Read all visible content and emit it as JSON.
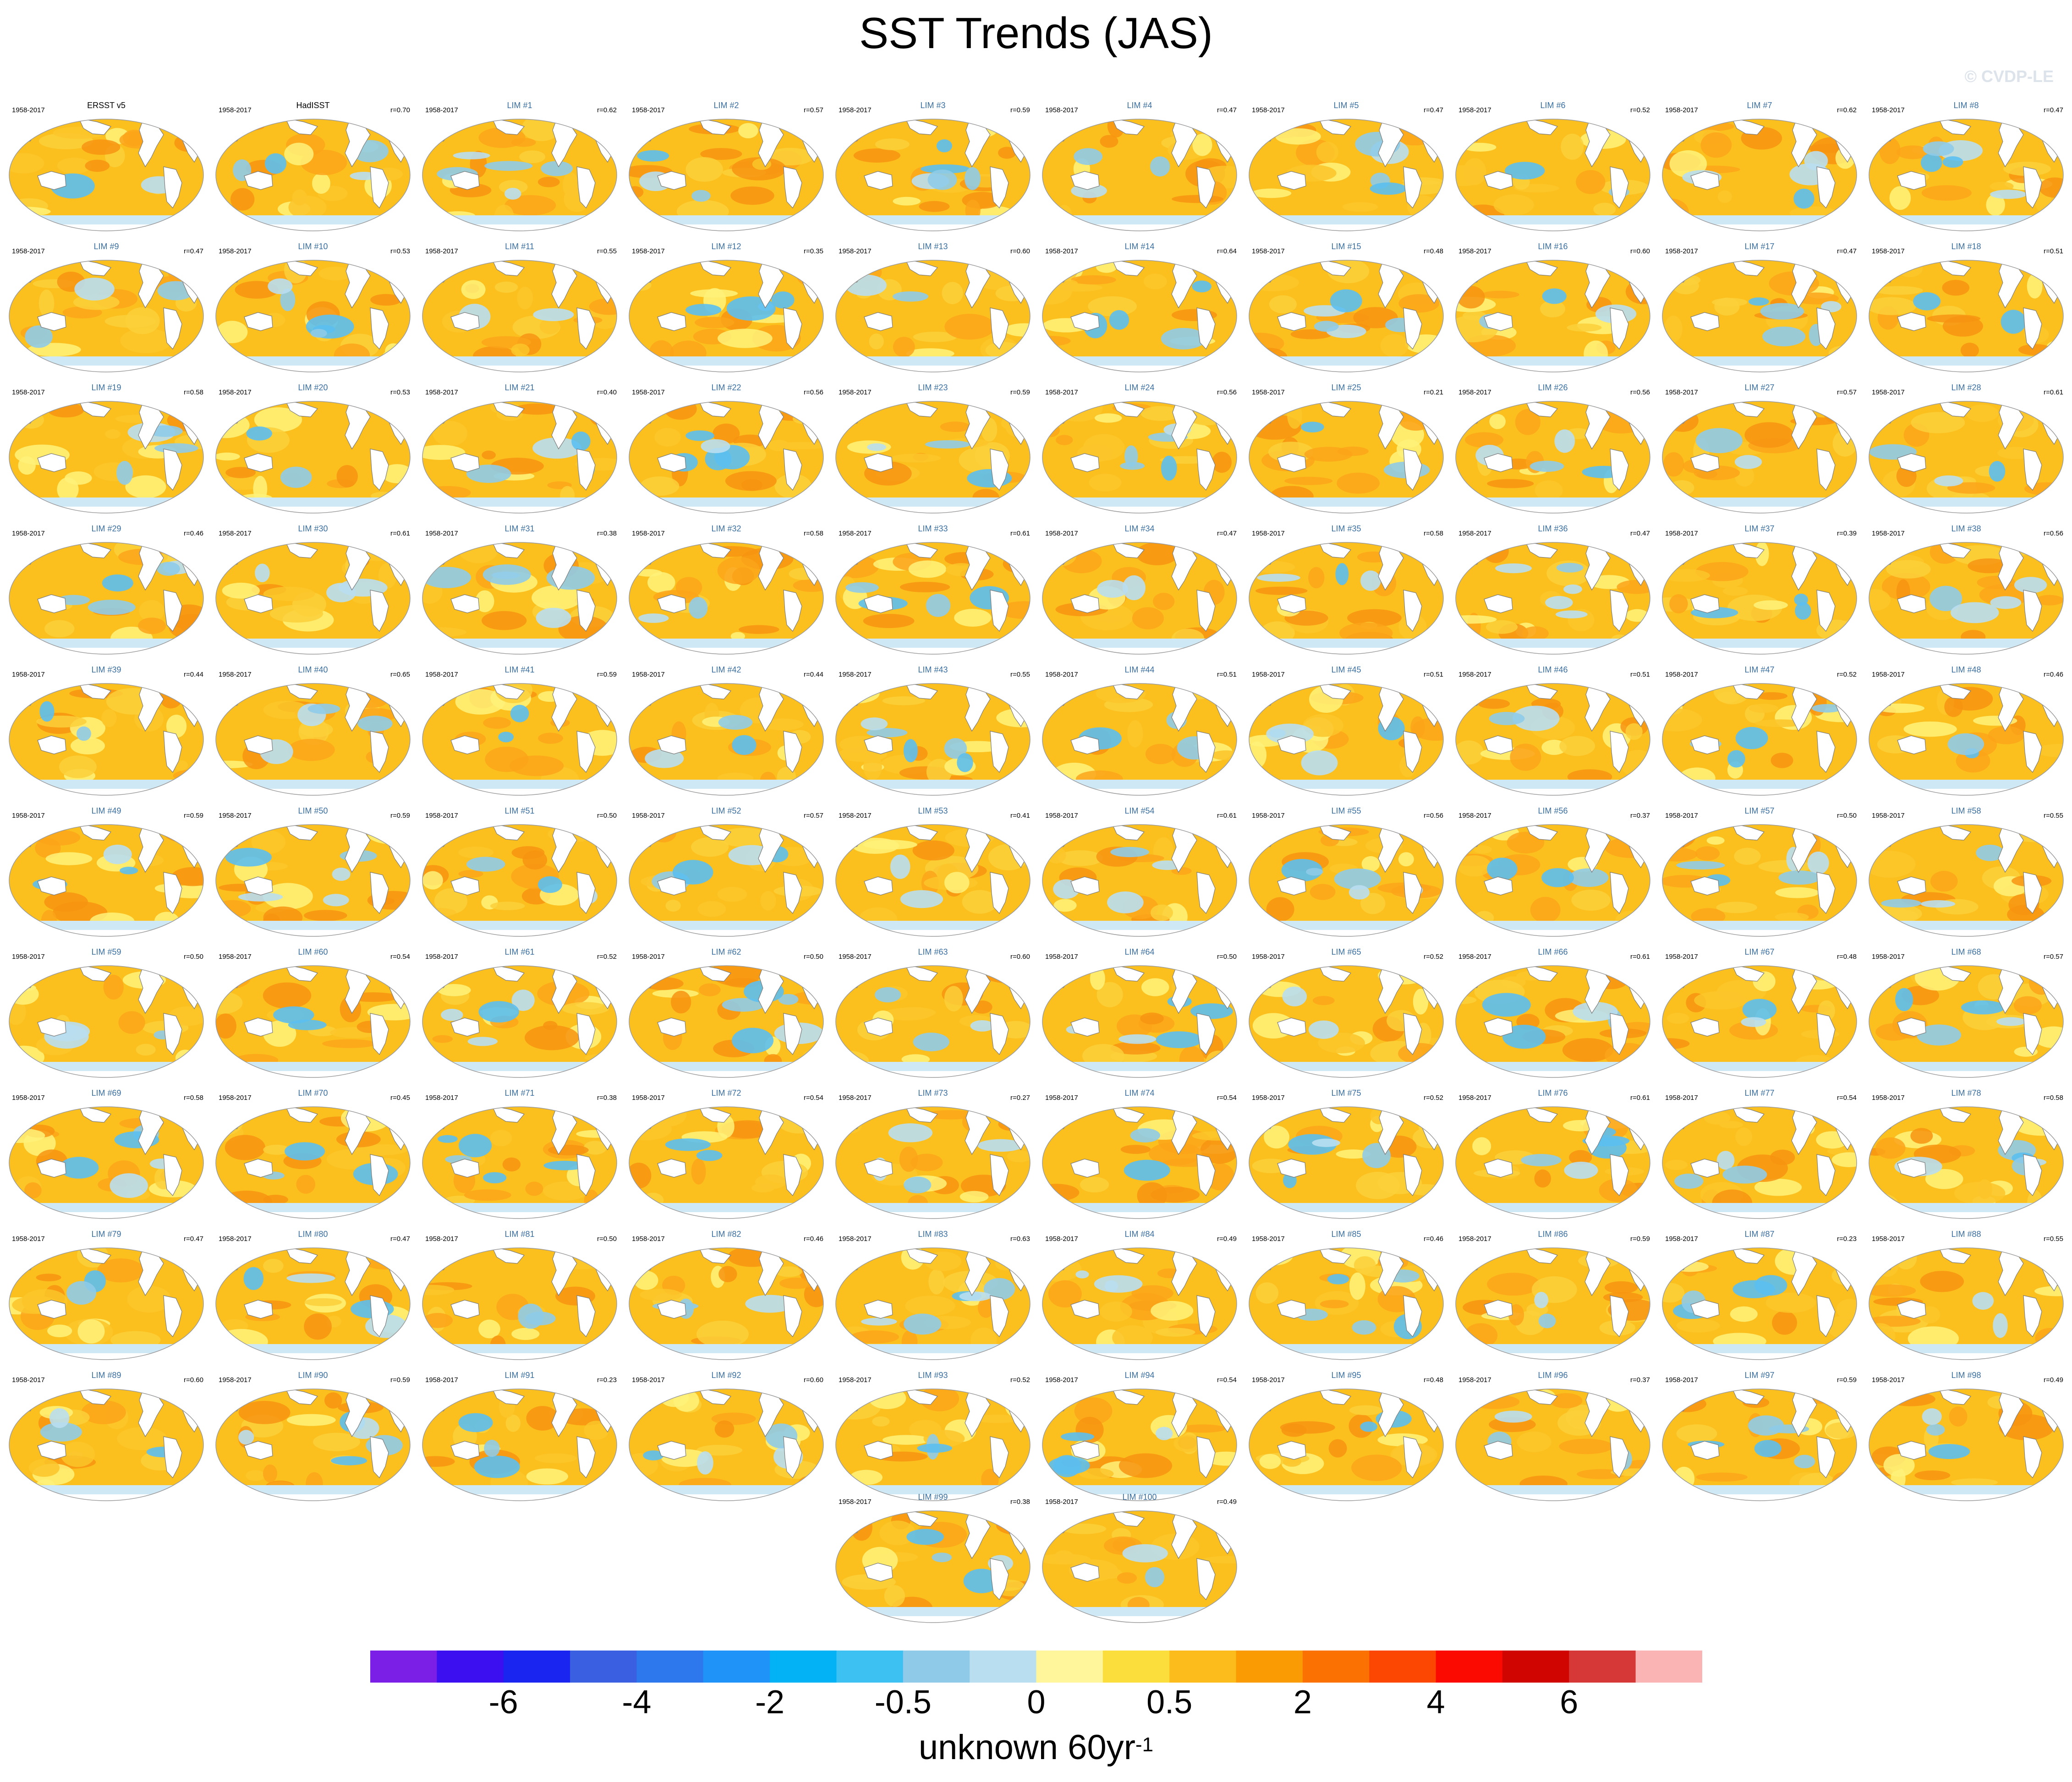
{
  "title": "SST Trends (JAS)",
  "watermark": "© CVDP-LE",
  "colors": {
    "panel_label": "#3a6fa0",
    "land": "#ffffff",
    "coast": "#7a7a7a"
  },
  "chart_data": {
    "type": "heatmap",
    "projection": "global-ellipse-map",
    "period": "1958-2017",
    "panels": [
      {
        "name": "ERSST v5",
        "corr": ""
      },
      {
        "name": "HadISST",
        "corr": "r=0.70"
      },
      {
        "name": "LIM #1",
        "corr": "r=0.62"
      },
      {
        "name": "LIM #2",
        "corr": "r=0.57"
      },
      {
        "name": "LIM #3",
        "corr": "r=0.59"
      },
      {
        "name": "LIM #4",
        "corr": "r=0.47"
      },
      {
        "name": "LIM #5",
        "corr": "r=0.47"
      },
      {
        "name": "LIM #6",
        "corr": "r=0.52"
      },
      {
        "name": "LIM #7",
        "corr": "r=0.62"
      },
      {
        "name": "LIM #8",
        "corr": "r=0.47"
      },
      {
        "name": "LIM #9",
        "corr": "r=0.47"
      },
      {
        "name": "LIM #10",
        "corr": "r=0.53"
      },
      {
        "name": "LIM #11",
        "corr": "r=0.55"
      },
      {
        "name": "LIM #12",
        "corr": "r=0.35"
      },
      {
        "name": "LIM #13",
        "corr": "r=0.60"
      },
      {
        "name": "LIM #14",
        "corr": "r=0.64"
      },
      {
        "name": "LIM #15",
        "corr": "r=0.48"
      },
      {
        "name": "LIM #16",
        "corr": "r=0.60"
      },
      {
        "name": "LIM #17",
        "corr": "r=0.47"
      },
      {
        "name": "LIM #18",
        "corr": "r=0.51"
      },
      {
        "name": "LIM #19",
        "corr": "r=0.58"
      },
      {
        "name": "LIM #20",
        "corr": "r=0.53"
      },
      {
        "name": "LIM #21",
        "corr": "r=0.40"
      },
      {
        "name": "LIM #22",
        "corr": "r=0.56"
      },
      {
        "name": "LIM #23",
        "corr": "r=0.59"
      },
      {
        "name": "LIM #24",
        "corr": "r=0.56"
      },
      {
        "name": "LIM #25",
        "corr": "r=0.21"
      },
      {
        "name": "LIM #26",
        "corr": "r=0.56"
      },
      {
        "name": "LIM #27",
        "corr": "r=0.57"
      },
      {
        "name": "LIM #28",
        "corr": "r=0.61"
      },
      {
        "name": "LIM #29",
        "corr": "r=0.46"
      },
      {
        "name": "LIM #30",
        "corr": "r=0.61"
      },
      {
        "name": "LIM #31",
        "corr": "r=0.38"
      },
      {
        "name": "LIM #32",
        "corr": "r=0.58"
      },
      {
        "name": "LIM #33",
        "corr": "r=0.61"
      },
      {
        "name": "LIM #34",
        "corr": "r=0.47"
      },
      {
        "name": "LIM #35",
        "corr": "r=0.58"
      },
      {
        "name": "LIM #36",
        "corr": "r=0.47"
      },
      {
        "name": "LIM #37",
        "corr": "r=0.39"
      },
      {
        "name": "LIM #38",
        "corr": "r=0.56"
      },
      {
        "name": "LIM #39",
        "corr": "r=0.44"
      },
      {
        "name": "LIM #40",
        "corr": "r=0.65"
      },
      {
        "name": "LIM #41",
        "corr": "r=0.59"
      },
      {
        "name": "LIM #42",
        "corr": "r=0.44"
      },
      {
        "name": "LIM #43",
        "corr": "r=0.55"
      },
      {
        "name": "LIM #44",
        "corr": "r=0.51"
      },
      {
        "name": "LIM #45",
        "corr": "r=0.51"
      },
      {
        "name": "LIM #46",
        "corr": "r=0.51"
      },
      {
        "name": "LIM #47",
        "corr": "r=0.52"
      },
      {
        "name": "LIM #48",
        "corr": "r=0.46"
      },
      {
        "name": "LIM #49",
        "corr": "r=0.59"
      },
      {
        "name": "LIM #50",
        "corr": "r=0.59"
      },
      {
        "name": "LIM #51",
        "corr": "r=0.50"
      },
      {
        "name": "LIM #52",
        "corr": "r=0.57"
      },
      {
        "name": "LIM #53",
        "corr": "r=0.41"
      },
      {
        "name": "LIM #54",
        "corr": "r=0.61"
      },
      {
        "name": "LIM #55",
        "corr": "r=0.56"
      },
      {
        "name": "LIM #56",
        "corr": "r=0.37"
      },
      {
        "name": "LIM #57",
        "corr": "r=0.50"
      },
      {
        "name": "LIM #58",
        "corr": "r=0.55"
      },
      {
        "name": "LIM #59",
        "corr": "r=0.50"
      },
      {
        "name": "LIM #60",
        "corr": "r=0.54"
      },
      {
        "name": "LIM #61",
        "corr": "r=0.52"
      },
      {
        "name": "LIM #62",
        "corr": "r=0.50"
      },
      {
        "name": "LIM #63",
        "corr": "r=0.60"
      },
      {
        "name": "LIM #64",
        "corr": "r=0.50"
      },
      {
        "name": "LIM #65",
        "corr": "r=0.52"
      },
      {
        "name": "LIM #66",
        "corr": "r=0.61"
      },
      {
        "name": "LIM #67",
        "corr": "r=0.48"
      },
      {
        "name": "LIM #68",
        "corr": "r=0.57"
      },
      {
        "name": "LIM #69",
        "corr": "r=0.58"
      },
      {
        "name": "LIM #70",
        "corr": "r=0.45"
      },
      {
        "name": "LIM #71",
        "corr": "r=0.38"
      },
      {
        "name": "LIM #72",
        "corr": "r=0.54"
      },
      {
        "name": "LIM #73",
        "corr": "r=0.27"
      },
      {
        "name": "LIM #74",
        "corr": "r=0.54"
      },
      {
        "name": "LIM #75",
        "corr": "r=0.52"
      },
      {
        "name": "LIM #76",
        "corr": "r=0.61"
      },
      {
        "name": "LIM #77",
        "corr": "r=0.54"
      },
      {
        "name": "LIM #78",
        "corr": "r=0.58"
      },
      {
        "name": "LIM #79",
        "corr": "r=0.47"
      },
      {
        "name": "LIM #80",
        "corr": "r=0.47"
      },
      {
        "name": "LIM #81",
        "corr": "r=0.50"
      },
      {
        "name": "LIM #82",
        "corr": "r=0.46"
      },
      {
        "name": "LIM #83",
        "corr": "r=0.63"
      },
      {
        "name": "LIM #84",
        "corr": "r=0.49"
      },
      {
        "name": "LIM #85",
        "corr": "r=0.46"
      },
      {
        "name": "LIM #86",
        "corr": "r=0.59"
      },
      {
        "name": "LIM #87",
        "corr": "r=0.23"
      },
      {
        "name": "LIM #88",
        "corr": "r=0.55"
      },
      {
        "name": "LIM #89",
        "corr": "r=0.60"
      },
      {
        "name": "LIM #90",
        "corr": "r=0.59"
      },
      {
        "name": "LIM #91",
        "corr": "r=0.23"
      },
      {
        "name": "LIM #92",
        "corr": "r=0.60"
      },
      {
        "name": "LIM #93",
        "corr": "r=0.52"
      },
      {
        "name": "LIM #94",
        "corr": "r=0.54"
      },
      {
        "name": "LIM #95",
        "corr": "r=0.48"
      },
      {
        "name": "LIM #96",
        "corr": "r=0.37"
      },
      {
        "name": "LIM #97",
        "corr": "r=0.59"
      },
      {
        "name": "LIM #98",
        "corr": "r=0.49"
      },
      {
        "name": "LIM #99",
        "corr": "r=0.38"
      },
      {
        "name": "LIM #100",
        "corr": "r=0.49"
      }
    ],
    "colorbar": {
      "colors": [
        "#7b1fe6",
        "#3b0ff0",
        "#1a25f0",
        "#3a5fe0",
        "#2e78ee",
        "#1f93f7",
        "#03b1f5",
        "#3dc0f2",
        "#8fcbe8",
        "#b9def0",
        "#fff59a",
        "#fbde3c",
        "#fbbc1c",
        "#fb9b04",
        "#fb7202",
        "#fb4702",
        "#fb0a02",
        "#d00400",
        "#d63838",
        "#fbb4b4"
      ],
      "tick_labels": [
        "-6",
        "-4",
        "-2",
        "-0.5",
        "0",
        "0.5",
        "2",
        "4",
        "6"
      ],
      "label_main": "unknown 60yr",
      "label_sup": "-1"
    }
  }
}
